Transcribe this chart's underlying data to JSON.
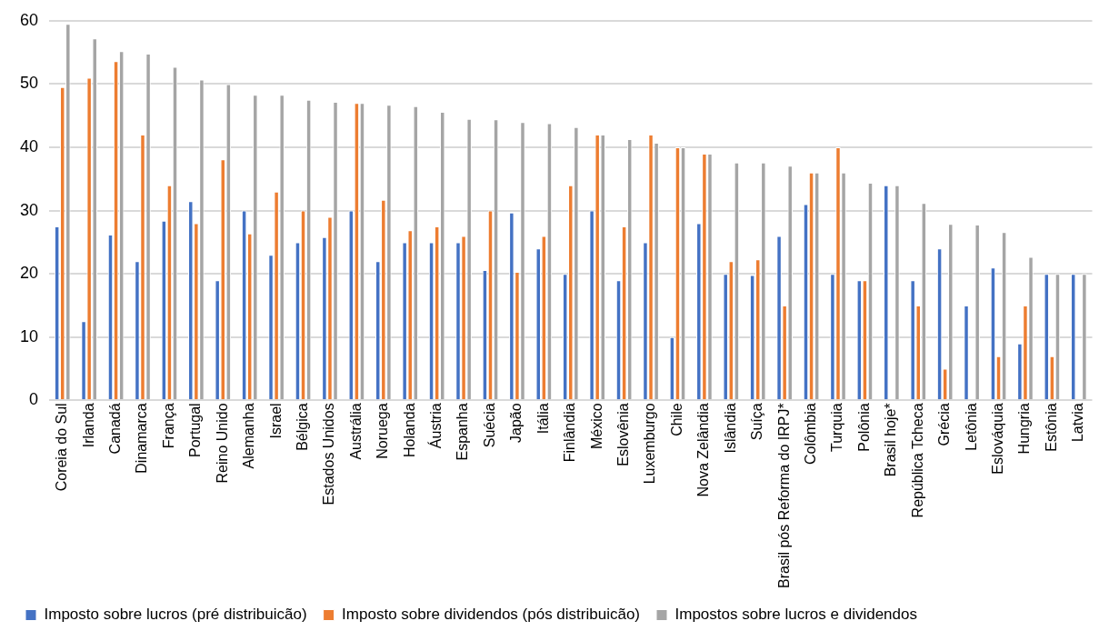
{
  "chart_data": {
    "type": "bar",
    "categories": [
      "Coreia do Sul",
      "Irlanda",
      "Canadá",
      "Dinamarca",
      "França",
      "Portugal",
      "Reino Unido",
      "Alemanha",
      "Israel",
      "Bélgica",
      "Estados Unidos",
      "Austrália",
      "Noruega",
      "Holanda",
      "Áustria",
      "Espanha",
      "Suécia",
      "Japão",
      "Itália",
      "Finlândia",
      "México",
      "Eslovênia",
      "Luxemburgo",
      "Chile",
      "Nova Zelândia",
      "Islândia",
      "Suíça",
      "Brasil pós Reforma do IRPJ*",
      "Colômbia",
      "Turquia",
      "Polônia",
      "Brasil hoje*",
      "República Tcheca",
      "Grécia",
      "Letônia",
      "Eslováquia",
      "Hungria",
      "Estônia",
      "Latvia"
    ],
    "series": [
      {
        "name": "Imposto sobre lucros (pré distribuicão)",
        "color": "#4472c4",
        "values": [
          27.5,
          12.5,
          26.2,
          22,
          28.4,
          31.5,
          19,
          30,
          23,
          25,
          25.8,
          30,
          22,
          25,
          25,
          25,
          20.6,
          29.7,
          24,
          20,
          30,
          19,
          25,
          10,
          28,
          20,
          19.8,
          26,
          31,
          20,
          19,
          34,
          19,
          24,
          15,
          21,
          9,
          20,
          20
        ]
      },
      {
        "name": "Imposto sobre dividendos (pós distribuicão)",
        "color": "#ed7d31",
        "values": [
          49.5,
          51,
          53.6,
          42,
          34,
          28,
          38.1,
          26.4,
          33,
          30,
          29,
          47,
          31.7,
          26.9,
          27.5,
          26,
          30,
          20.3,
          26,
          34,
          42,
          27.5,
          42,
          40,
          39,
          22,
          22.3,
          15,
          36,
          40,
          19,
          null,
          15,
          5,
          null,
          7,
          15,
          7,
          null
        ]
      },
      {
        "name": "Impostos sobre lucros e dividendos",
        "color": "#a5a5a5",
        "values": [
          59.5,
          57.2,
          55.2,
          54.8,
          52.7,
          50.7,
          50,
          48.3,
          48.3,
          47.5,
          47.2,
          47,
          46.7,
          46.5,
          45.6,
          44.5,
          44.4,
          44,
          43.8,
          43.2,
          42,
          41.3,
          40.7,
          40,
          39,
          37.6,
          37.6,
          37.1,
          36,
          36,
          34.4,
          34,
          31.2,
          27.9,
          27.8,
          26.6,
          22.7,
          20,
          20
        ]
      }
    ],
    "ylim": [
      0,
      60
    ],
    "yticks": [
      0,
      10,
      20,
      30,
      40,
      50,
      60
    ],
    "grid": "y",
    "legend": "bottom"
  }
}
